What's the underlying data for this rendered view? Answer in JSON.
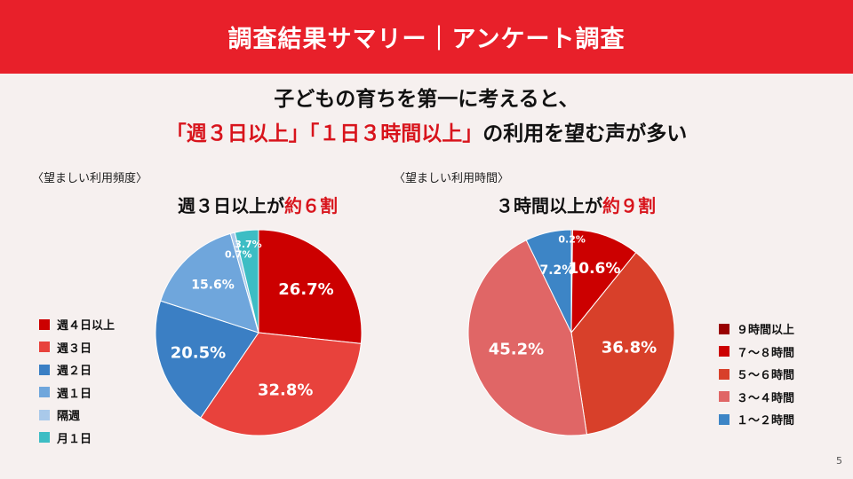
{
  "header": {
    "title": "調査結果サマリー｜アンケート調査"
  },
  "headline": {
    "line1": "子どもの育ちを第一に考えると、",
    "line2_red": "「週３日以上」「１日３時間以上」",
    "line2_rest": "の利用を望む声が多い"
  },
  "page_number": "5",
  "chart_data": [
    {
      "type": "pie",
      "subtitle": "〈望ましい利用頻度〉",
      "title_prefix": "週３日以上が",
      "title_highlight": "約６割",
      "labels": [
        "週４日以上",
        "週３日",
        "週２日",
        "週１日",
        "隔週",
        "月１日"
      ],
      "values": [
        26.7,
        32.8,
        20.5,
        15.6,
        0.7,
        3.7
      ],
      "value_labels": [
        "26.7%",
        "32.8%",
        "20.5%",
        "15.6%",
        "0.7%",
        "3.7%"
      ],
      "colors": [
        "#cc0000",
        "#e8423c",
        "#3b7fc4",
        "#6fa6dc",
        "#a9c9ea",
        "#3dbdc4"
      ],
      "label_colors": [
        "#ffffff",
        "#ffffff",
        "#ffffff",
        "#ffffff",
        "#ffffff",
        "#ffffff"
      ],
      "legend_position": "left"
    },
    {
      "type": "pie",
      "subtitle": "〈望ましい利用時間〉",
      "title_prefix": "３時間以上が",
      "title_highlight": "約９割",
      "labels": [
        "９時間以上",
        "７～８時間",
        "５～６時間",
        "３～４時間",
        "１～２時間"
      ],
      "values": [
        0.2,
        10.6,
        36.8,
        45.2,
        7.2
      ],
      "value_labels": [
        "0.2%",
        "10.6%",
        "36.8%",
        "45.2%",
        "7.2%"
      ],
      "colors": [
        "#990000",
        "#cc0000",
        "#d8402a",
        "#e06666",
        "#3d85c6"
      ],
      "label_colors": [
        "#ffffff",
        "#ffffff",
        "#ffffff",
        "#ffffff",
        "#ffffff"
      ],
      "legend_position": "right"
    }
  ]
}
